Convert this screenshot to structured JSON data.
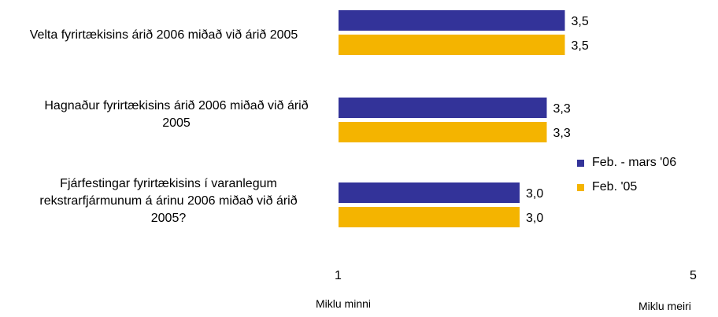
{
  "chart_data": {
    "type": "bar",
    "orientation": "horizontal",
    "categories": [
      "Velta fyrirtækisins árið 2006 miðað við árið 2005",
      "Hagnaður fyrirtækisins árið 2006 miðað við árið 2005",
      "Fjárfestingar fyrirtækisins í varanlegum rekstrarfjármunum á árinu 2006 miðað við árið 2005?"
    ],
    "series": [
      {
        "name": "Feb. - mars '06",
        "values": [
          3.5,
          3.3,
          3.0
        ],
        "labels": [
          "3,5",
          "3,3",
          "3,0"
        ],
        "color": "#333399"
      },
      {
        "name": "Feb. '05",
        "values": [
          3.5,
          3.3,
          3.0
        ],
        "labels": [
          "3,5",
          "3,3",
          "3,0"
        ],
        "color": "#F4B400"
      }
    ],
    "xlim": [
      1,
      5
    ],
    "tick_labels": [
      "1",
      "5"
    ],
    "axis_min_label": "Miklu minni",
    "axis_max_label": "Miklu meiri",
    "legend_position": "right",
    "grid": false
  }
}
